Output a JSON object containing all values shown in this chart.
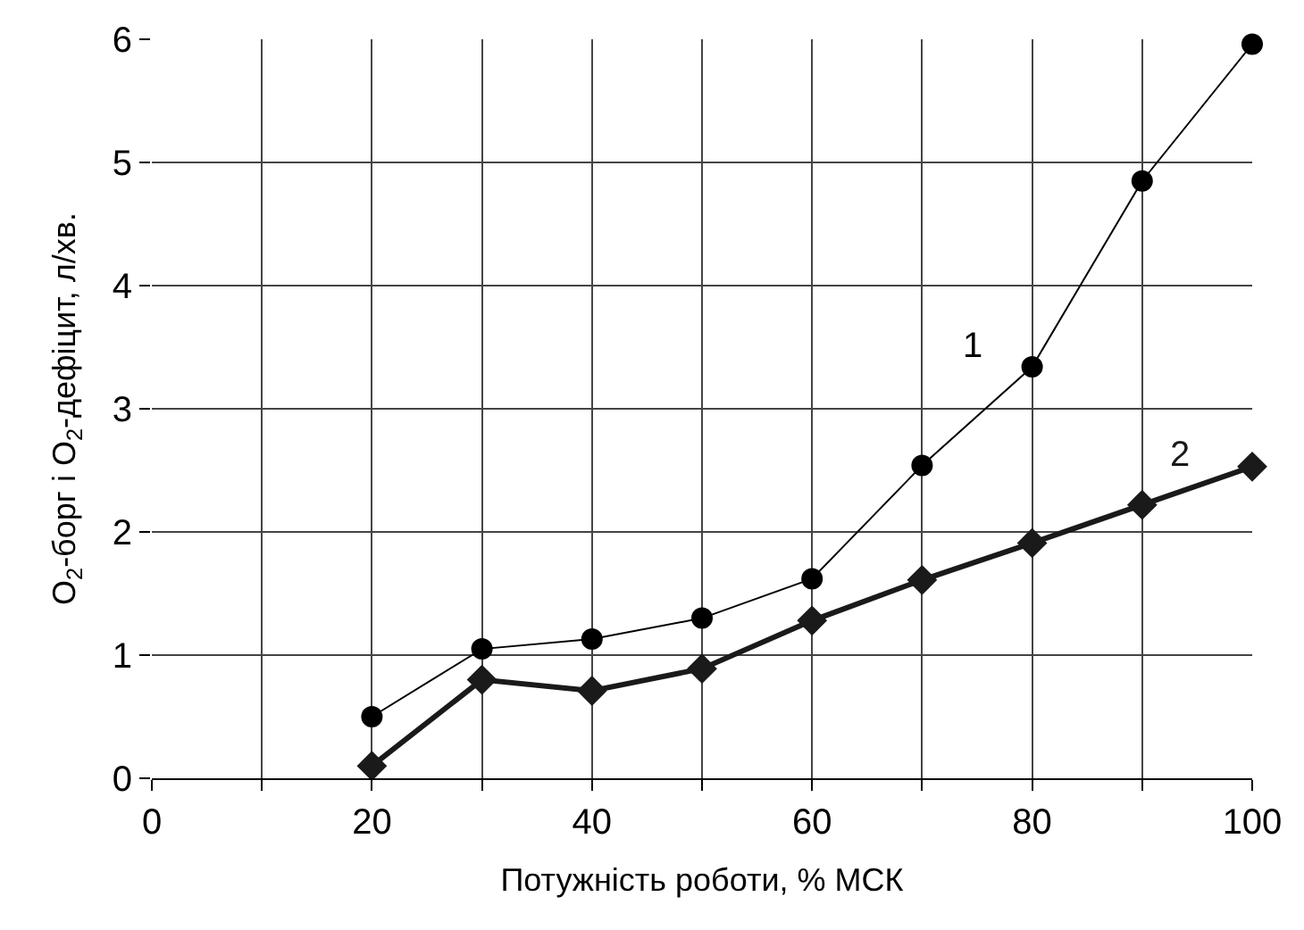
{
  "chart_data": {
    "type": "line",
    "xlabel": "Потужність роботи, % МСК",
    "ylabel": "O$_{2}$-борг і O$_{2}$-дефіцит, л/хв.",
    "x": [
      20,
      30,
      40,
      50,
      60,
      70,
      80,
      90,
      100
    ],
    "series": [
      {
        "name": "1",
        "color": "#000000",
        "marker": "circle",
        "values": [
          0.5,
          1.05,
          1.13,
          1.3,
          1.62,
          2.54,
          3.34,
          4.85,
          5.96
        ]
      },
      {
        "name": "2",
        "color": "#1a1a1a",
        "marker": "diamond",
        "values": [
          0.1,
          0.8,
          0.71,
          0.89,
          1.28,
          1.61,
          1.91,
          2.22,
          2.53
        ]
      }
    ],
    "xlim": [
      0,
      100
    ],
    "xticks": [
      0,
      20,
      40,
      60,
      80,
      100
    ],
    "ylim": [
      0,
      6
    ],
    "yticks": [
      0,
      1,
      2,
      3,
      4,
      5,
      6
    ],
    "grid": true,
    "legend": false
  }
}
